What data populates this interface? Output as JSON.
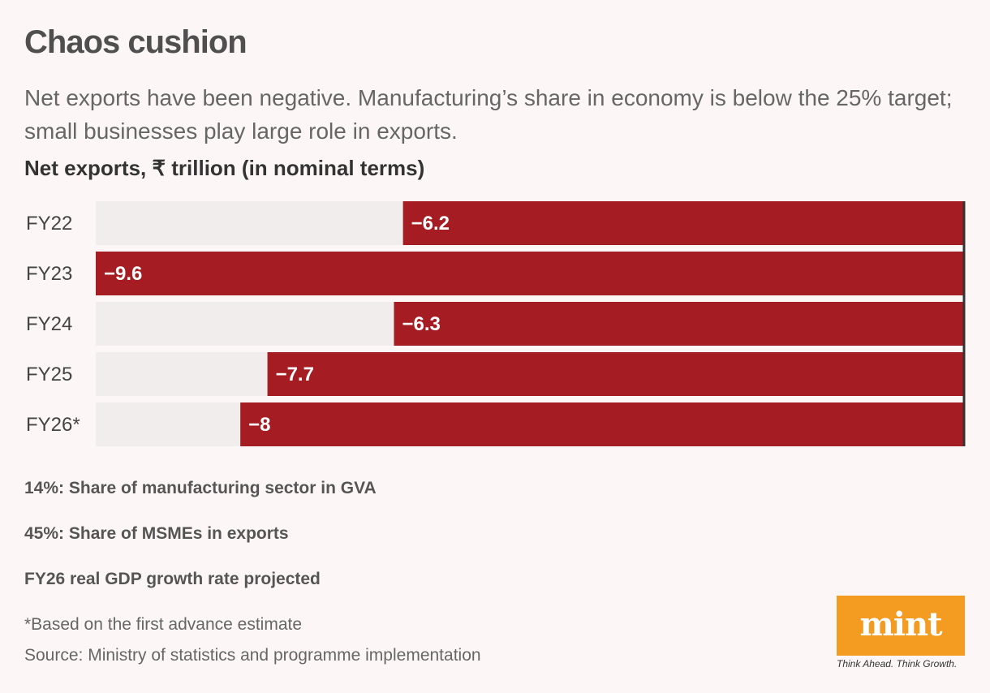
{
  "header": {
    "title": "Chaos cushion",
    "subtitle": "Net exports have been negative. Manufacturing’s share in economy is below the 25% target; small businesses play large role in exports."
  },
  "chart_data": {
    "type": "bar",
    "orientation": "horizontal",
    "title": "Net exports, ₹ trillion (in nominal terms)",
    "categories": [
      "FY22",
      "FY23",
      "FY24",
      "FY25",
      "FY26*"
    ],
    "values": [
      -6.2,
      -9.6,
      -6.3,
      -7.7,
      -8
    ],
    "value_labels": [
      "−6.2",
      "−9.6",
      "−6.3",
      "−7.7",
      "−8"
    ],
    "xlim": [
      -9.6,
      0
    ],
    "grid": false,
    "colors": {
      "bar": "#a51d22",
      "track": "#f2eded",
      "zero_line": "#333333"
    }
  },
  "stats": [
    "14%: Share of manufacturing sector in GVA",
    "45%: Share of MSMEs in exports",
    "FY26 real GDP growth rate projected"
  ],
  "footer": {
    "note": "*Based on the first advance estimate",
    "source": "Source: Ministry of statistics and programme implementation"
  },
  "logo": {
    "text": "mint",
    "tagline": "Think Ahead. Think Growth.",
    "color": "#f49b21"
  }
}
